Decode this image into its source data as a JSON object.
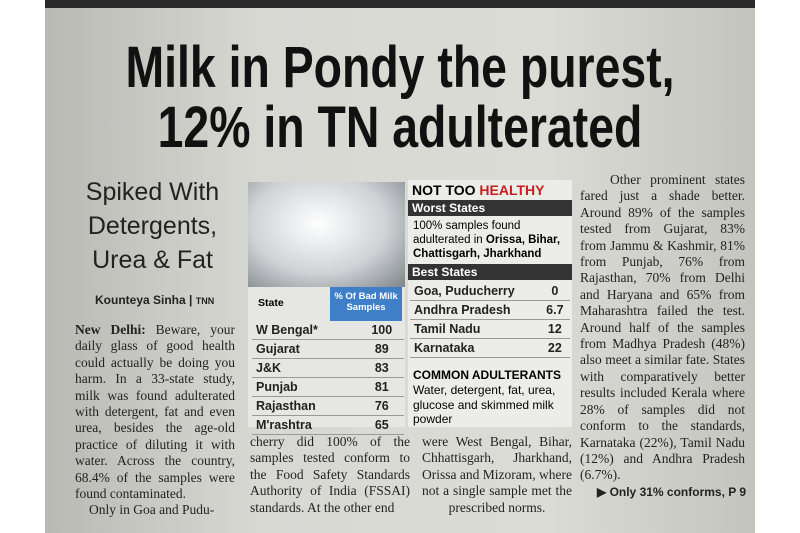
{
  "headline": {
    "lines": [
      "Milk in Pondy the purest,",
      "12% in TN adulterated"
    ]
  },
  "subhead": {
    "lines": [
      "Spiked With",
      "Detergents,",
      "Urea & Fat"
    ]
  },
  "byline": {
    "author": "Kounteya Sinha",
    "agency": "TNN"
  },
  "column1": {
    "dateline": "New Delhi:",
    "text": "Beware, your daily glass of good health could actually be doing you harm. In a 33-state study, milk was found adulterated with detergent, fat and even urea, besides the age-old practice of diluting it with water. Across the country, 68.4% of the samples were found contaminated.",
    "text2": "Only in Goa and Pudu-"
  },
  "column2": {
    "text": "cherry did 100% of the samples tested conform to the Food Safety Standards Authority of India (FSSAI) standards. At the other end"
  },
  "column3": {
    "text": "were West Bengal, Bihar, Chhattisgarh, Jharkhand, Orissa and Mizoram, where not a single sample met the prescribed norms."
  },
  "column4": {
    "text": "Other prominent states fared just a shade better. Around 89% of the samples tested from Gujarat, 83% from Jammu & Kashmir, 81% from Punjab, 76% from Rajasthan, 70% from Delhi and Haryana and 65% from Maharashtra failed the test. Around half of the samples from Madhya Pradesh (48%) also meet a similar fate. States with comparatively better results included Kerala where 28% of samples did not conform to the standards, Karnataka (22%), Tamil Nadu (12%) and Andhra Pradesh (6.7%).",
    "reference": "Only 31% conforms, P 9"
  },
  "table": {
    "headers": [
      "State",
      "% Of Bad Milk Samples"
    ],
    "rows": [
      [
        "W Bengal*",
        100
      ],
      [
        "Gujarat",
        89
      ],
      [
        "J&K",
        83
      ],
      [
        "Punjab",
        81
      ],
      [
        "Rajasthan",
        76
      ],
      [
        "M'rashtra",
        65
      ]
    ]
  },
  "box": {
    "title": "NOT TOO",
    "title_highlight": "HEALTHY",
    "worst_heading": "Worst States",
    "worst_text": "100% samples found adulterated in",
    "worst_states": "Orissa, Bihar, Chattisgarh, Jharkhand",
    "best_heading": "Best States",
    "best_rows": [
      [
        "Goa, Puducherry",
        0
      ],
      [
        "Andhra Pradesh",
        6.7
      ],
      [
        "Tamil Nadu",
        12
      ],
      [
        "Karnataka",
        22
      ]
    ],
    "adulterants_heading": "COMMON ADULTERANTS",
    "adulterants_text": "Water, detergent, fat, urea, glucose and skimmed milk powder"
  }
}
